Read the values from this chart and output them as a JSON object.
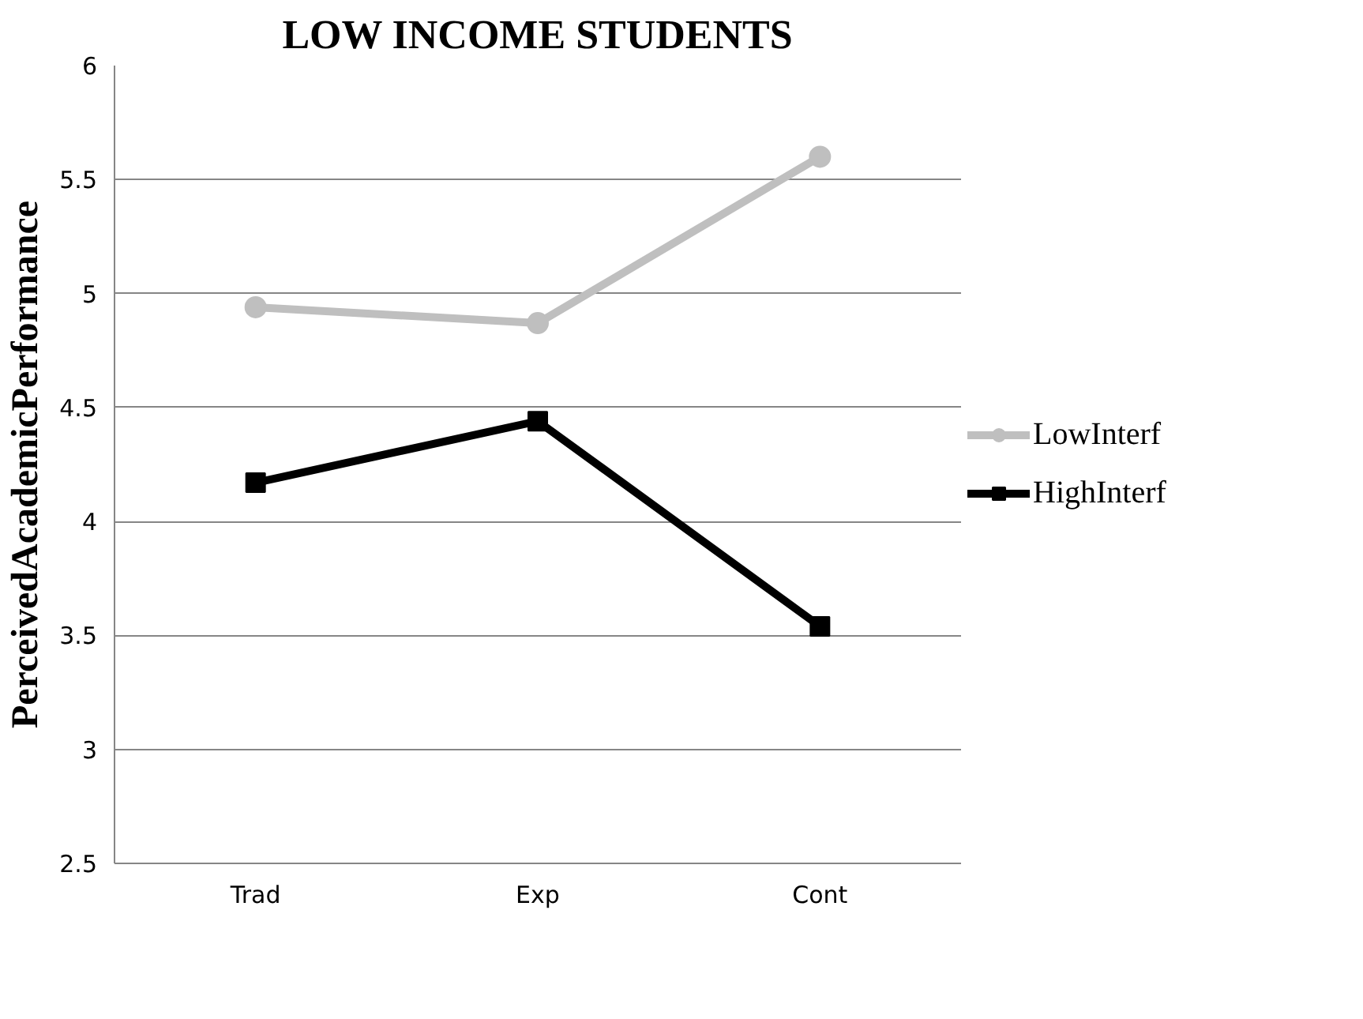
{
  "chart_data": {
    "type": "line",
    "title": "LOW INCOME STUDENTS",
    "ylabel": "PerceivedAcademicPerformance",
    "categories": [
      "Trad",
      "Exp",
      "Cont"
    ],
    "series": [
      {
        "name": "LowInterf",
        "color": "#bfbfbf",
        "marker": "circle",
        "values": [
          4.94,
          4.87,
          5.6
        ]
      },
      {
        "name": "HighInterf",
        "color": "#000000",
        "marker": "square",
        "values": [
          4.17,
          4.44,
          3.54
        ]
      }
    ],
    "ylim": [
      2.5,
      6
    ],
    "yticks": [
      2.5,
      3,
      3.5,
      4,
      4.5,
      5,
      5.5,
      6
    ],
    "grid": "y",
    "legend": "right"
  }
}
